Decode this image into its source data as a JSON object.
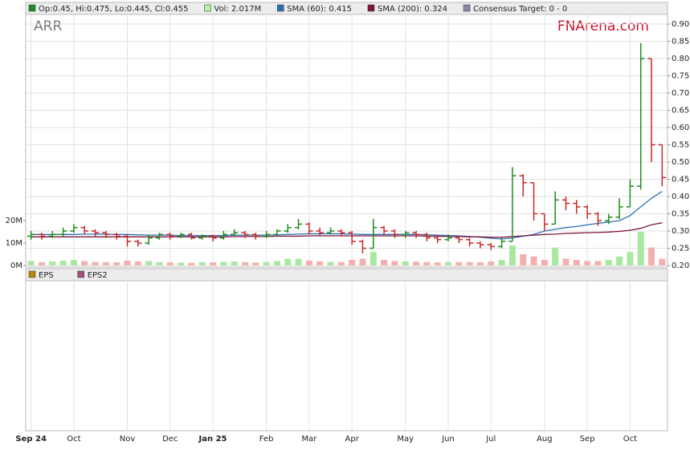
{
  "chart_data": {
    "type": "ohlc",
    "title": "ARR",
    "watermark": "FNArena.com",
    "categories": [
      "Sep 24",
      null,
      null,
      null,
      "Oct",
      null,
      null,
      null,
      null,
      "Nov",
      null,
      null,
      null,
      "Dec",
      null,
      null,
      null,
      "Jan 25",
      null,
      null,
      null,
      null,
      "Feb",
      null,
      null,
      null,
      "Mar",
      null,
      null,
      null,
      "Apr",
      null,
      null,
      null,
      null,
      "May",
      null,
      null,
      null,
      "Jun",
      null,
      null,
      null,
      "Jul",
      null,
      null,
      null,
      null,
      "Aug",
      null,
      null,
      null,
      "Sep",
      null,
      null,
      null,
      "Oct",
      null,
      null,
      null
    ],
    "open": [
      0.285,
      0.29,
      0.285,
      0.29,
      0.3,
      0.31,
      0.3,
      0.295,
      0.29,
      0.285,
      0.27,
      0.265,
      0.28,
      0.29,
      0.285,
      0.29,
      0.28,
      0.285,
      0.28,
      0.29,
      0.295,
      0.29,
      0.285,
      0.29,
      0.3,
      0.31,
      0.32,
      0.3,
      0.295,
      0.3,
      0.295,
      0.27,
      0.25,
      0.31,
      0.3,
      0.29,
      0.295,
      0.29,
      0.28,
      0.275,
      0.28,
      0.275,
      0.265,
      0.26,
      0.255,
      0.27,
      0.46,
      0.44,
      0.35,
      0.32,
      0.39,
      0.38,
      0.37,
      0.35,
      0.33,
      0.34,
      0.37,
      0.43,
      0.8,
      0.55
    ],
    "high": [
      0.3,
      0.295,
      0.3,
      0.31,
      0.32,
      0.315,
      0.305,
      0.3,
      0.295,
      0.29,
      0.275,
      0.29,
      0.295,
      0.295,
      0.295,
      0.295,
      0.29,
      0.29,
      0.3,
      0.305,
      0.3,
      0.295,
      0.3,
      0.305,
      0.32,
      0.335,
      0.325,
      0.31,
      0.31,
      0.305,
      0.3,
      0.275,
      0.335,
      0.315,
      0.305,
      0.3,
      0.3,
      0.295,
      0.285,
      0.29,
      0.285,
      0.28,
      0.27,
      0.265,
      0.28,
      0.485,
      0.465,
      0.44,
      0.35,
      0.415,
      0.4,
      0.39,
      0.375,
      0.355,
      0.35,
      0.395,
      0.45,
      0.845,
      0.8,
      0.55
    ],
    "low": [
      0.275,
      0.275,
      0.28,
      0.285,
      0.295,
      0.29,
      0.285,
      0.28,
      0.275,
      0.255,
      0.255,
      0.26,
      0.275,
      0.275,
      0.28,
      0.275,
      0.275,
      0.27,
      0.275,
      0.285,
      0.28,
      0.275,
      0.28,
      0.285,
      0.295,
      0.305,
      0.29,
      0.285,
      0.29,
      0.285,
      0.26,
      0.235,
      0.25,
      0.29,
      0.28,
      0.28,
      0.28,
      0.27,
      0.265,
      0.27,
      0.265,
      0.255,
      0.25,
      0.245,
      0.25,
      0.27,
      0.4,
      0.33,
      0.3,
      0.32,
      0.36,
      0.35,
      0.335,
      0.315,
      0.32,
      0.335,
      0.37,
      0.42,
      0.5,
      0.43
    ],
    "close": [
      0.29,
      0.285,
      0.29,
      0.3,
      0.31,
      0.3,
      0.295,
      0.29,
      0.285,
      0.27,
      0.265,
      0.28,
      0.29,
      0.285,
      0.29,
      0.28,
      0.285,
      0.28,
      0.29,
      0.295,
      0.29,
      0.285,
      0.29,
      0.3,
      0.31,
      0.32,
      0.3,
      0.295,
      0.3,
      0.295,
      0.27,
      0.25,
      0.31,
      0.3,
      0.29,
      0.295,
      0.29,
      0.28,
      0.275,
      0.28,
      0.275,
      0.265,
      0.26,
      0.255,
      0.27,
      0.46,
      0.44,
      0.35,
      0.32,
      0.39,
      0.38,
      0.37,
      0.35,
      0.33,
      0.34,
      0.37,
      0.43,
      0.8,
      0.55,
      0.455
    ],
    "volume": [
      2000000,
      1500000,
      1800000,
      2200000,
      2500000,
      2000000,
      1600000,
      1500000,
      1400000,
      2200000,
      1800000,
      2000000,
      1500000,
      1400000,
      1300000,
      1200000,
      1500000,
      1400000,
      1600000,
      1800000,
      1500000,
      1300000,
      1600000,
      2000000,
      3000000,
      3000000,
      2200000,
      1800000,
      1600000,
      1500000,
      2500000,
      3000000,
      6000000,
      2500000,
      2000000,
      1800000,
      1700000,
      1500000,
      1400000,
      1600000,
      1500000,
      1500000,
      1400000,
      1800000,
      2500000,
      9000000,
      5000000,
      4000000,
      2500000,
      8000000,
      3000000,
      2500000,
      2000000,
      2000000,
      2500000,
      4000000,
      6000000,
      15000000,
      8000000,
      3000000
    ],
    "up_color": "#1e8c1e",
    "down_color": "#c82828",
    "volume_up_color": "#a8e8a0",
    "volume_down_color": "#f2b0b0",
    "legend": [
      {
        "name": "Op:0.45, Hi:0.475, Lo:0.445, Cl:0.455",
        "color": "#1e8c1e"
      },
      {
        "name": "Vol: 2.017M",
        "color": "#b8f0a8"
      },
      {
        "name": "SMA (60): 0.415",
        "color": "#2d6fb5"
      },
      {
        "name": "SMA (200): 0.324",
        "color": "#7a1a3a"
      },
      {
        "name": "Consensus Target: 0 - 0",
        "color": "#8888aa"
      }
    ],
    "series": [
      {
        "name": "SMA (60): 0.415",
        "color": "#2d6fb5",
        "values": [
          0.29,
          0.29,
          0.29,
          0.29,
          0.29,
          0.291,
          0.291,
          0.291,
          0.29,
          0.29,
          0.289,
          0.288,
          0.288,
          0.288,
          0.287,
          0.287,
          0.287,
          0.287,
          0.287,
          0.288,
          0.288,
          0.288,
          0.288,
          0.289,
          0.29,
          0.291,
          0.292,
          0.292,
          0.292,
          0.292,
          0.291,
          0.29,
          0.29,
          0.29,
          0.29,
          0.29,
          0.29,
          0.289,
          0.288,
          0.287,
          0.286,
          0.284,
          0.282,
          0.279,
          0.277,
          0.28,
          0.285,
          0.29,
          0.3,
          0.305,
          0.31,
          0.313,
          0.318,
          0.322,
          0.326,
          0.33,
          0.345,
          0.37,
          0.395,
          0.415
        ]
      },
      {
        "name": "SMA (200): 0.324",
        "color": "#7a1a3a",
        "values": [
          0.283,
          0.283,
          0.283,
          0.283,
          0.283,
          0.283,
          0.283,
          0.283,
          0.283,
          0.283,
          0.283,
          0.283,
          0.283,
          0.283,
          0.283,
          0.283,
          0.283,
          0.283,
          0.283,
          0.284,
          0.284,
          0.284,
          0.284,
          0.285,
          0.285,
          0.285,
          0.286,
          0.286,
          0.286,
          0.286,
          0.286,
          0.286,
          0.286,
          0.286,
          0.286,
          0.286,
          0.286,
          0.285,
          0.285,
          0.284,
          0.284,
          0.283,
          0.283,
          0.282,
          0.282,
          0.284,
          0.286,
          0.288,
          0.29,
          0.291,
          0.293,
          0.294,
          0.295,
          0.296,
          0.297,
          0.299,
          0.302,
          0.308,
          0.318,
          0.324
        ]
      }
    ],
    "ylim": [
      0.2,
      0.9
    ],
    "yticks": [
      {
        "value": 0.2,
        "label": "0.20"
      },
      0.25,
      {
        "value": 0.3,
        "label": "0.30"
      },
      0.35,
      {
        "value": 0.4,
        "label": "0.40"
      },
      0.45,
      {
        "value": 0.5,
        "label": "0.50"
      },
      0.55,
      {
        "value": 0.6,
        "label": "0.60"
      },
      0.65,
      {
        "value": 0.7,
        "label": "0.70"
      },
      0.75,
      {
        "value": 0.8,
        "label": "0.80"
      },
      0.85,
      {
        "value": 0.9,
        "label": "0.90"
      }
    ],
    "volume_ylim": [
      0,
      107500000
    ],
    "volume_ticks": [
      {
        "value": 0,
        "label": "0M"
      },
      {
        "value": 10000000,
        "label": "10M"
      },
      {
        "value": 20000000,
        "label": "20M"
      }
    ],
    "grid": true,
    "lower_legend": [
      {
        "name": "EPS",
        "color": "#b8860b"
      },
      {
        "name": "EPS2",
        "color": "#a0507a"
      }
    ]
  }
}
